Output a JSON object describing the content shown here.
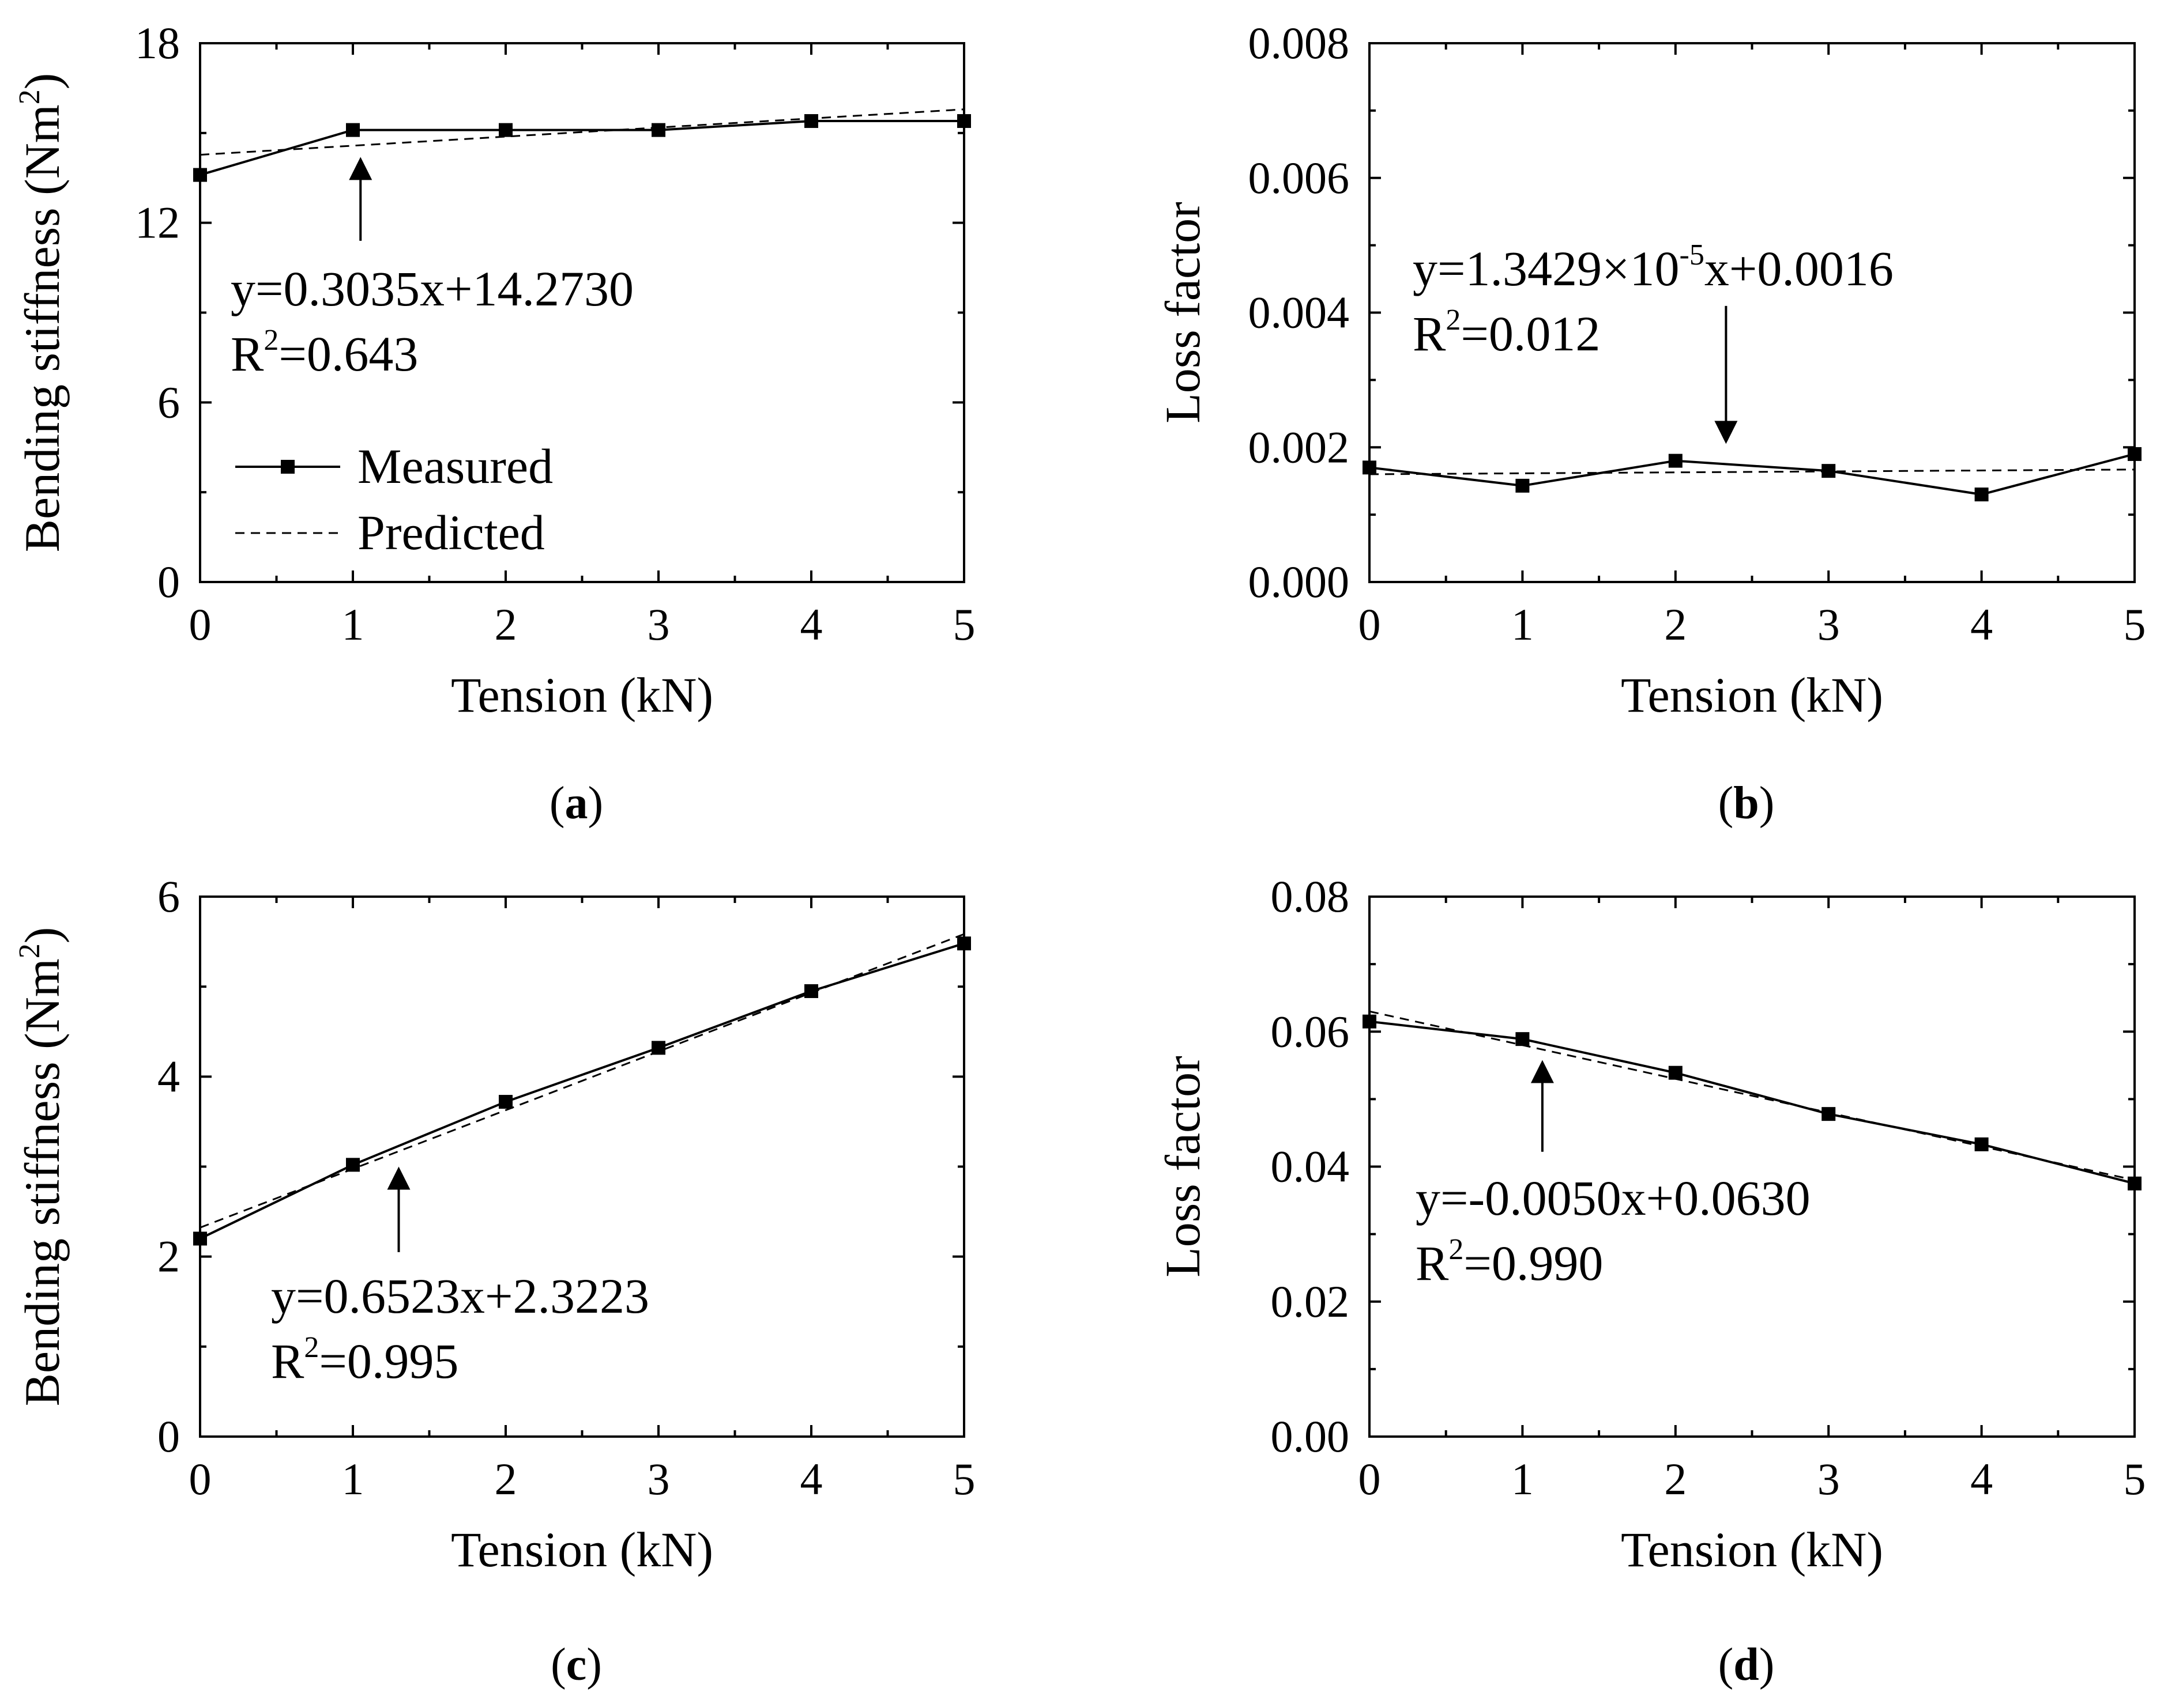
{
  "chart_data": [
    {
      "type": "line",
      "panel_label": "a",
      "xlabel": "Tension (kN)",
      "ylabel": "Bending stiffness (Nm",
      "ylabel_sup": "2",
      "ylabel_close": ")",
      "xlim": [
        0,
        5
      ],
      "ylim": [
        0,
        18
      ],
      "xticks": [
        0,
        1,
        2,
        3,
        4,
        5
      ],
      "yticks": [
        0,
        6,
        12,
        18
      ],
      "ytick_labels": [
        "0",
        "6",
        "12",
        "18"
      ],
      "series": [
        {
          "name": "Measured",
          "style": "solid-square",
          "x": [
            0,
            1,
            2,
            3,
            4,
            5
          ],
          "y": [
            13.6,
            15.1,
            15.1,
            15.1,
            15.4,
            15.4
          ]
        },
        {
          "name": "Predicted",
          "style": "dashed",
          "x": [
            0,
            5
          ],
          "y": [
            14.273,
            15.7905
          ]
        }
      ],
      "legend": {
        "position": "lower-left",
        "entries": [
          "Measured",
          "Predicted"
        ]
      },
      "equation": "y=0.3035x+14.2730",
      "r2_prefix": "R",
      "r2_sup": "2",
      "r2_value": "=0.643",
      "arrow": {
        "direction": "up",
        "x": 1.05,
        "y_from": 11.4,
        "y_to": 14.2
      }
    },
    {
      "type": "line",
      "panel_label": "b",
      "xlabel": "Tension (kN)",
      "ylabel": "Loss factor",
      "xlim": [
        0,
        5
      ],
      "ylim": [
        0,
        0.008
      ],
      "xticks": [
        0,
        1,
        2,
        3,
        4,
        5
      ],
      "yticks": [
        0,
        0.002,
        0.004,
        0.006,
        0.008
      ],
      "ytick_labels": [
        "0.000",
        "0.002",
        "0.004",
        "0.006",
        "0.008"
      ],
      "series": [
        {
          "name": "Measured",
          "style": "solid-square",
          "x": [
            0,
            1,
            2,
            3,
            4,
            5
          ],
          "y": [
            0.0017,
            0.00143,
            0.0018,
            0.00165,
            0.0013,
            0.0019
          ]
        },
        {
          "name": "Predicted",
          "style": "dashed",
          "x": [
            0,
            5
          ],
          "y": [
            0.0016,
            0.00167
          ]
        }
      ],
      "equation_pre": "y=1.3429×10",
      "equation_sup": "-5",
      "equation_post": "x+0.0016",
      "r2_prefix": "R",
      "r2_sup": "2",
      "r2_value": "=0.012",
      "arrow": {
        "direction": "down",
        "x": 2.33,
        "y_from": 0.0041,
        "y_to": 0.00205
      }
    },
    {
      "type": "line",
      "panel_label": "c",
      "xlabel": "Tension (kN)",
      "ylabel": "Bending stiffness (Nm",
      "ylabel_sup": "2",
      "ylabel_close": ")",
      "xlim": [
        0,
        5
      ],
      "ylim": [
        0,
        6
      ],
      "xticks": [
        0,
        1,
        2,
        3,
        4,
        5
      ],
      "yticks": [
        0,
        2,
        4,
        6
      ],
      "ytick_labels": [
        "0",
        "2",
        "4",
        "6"
      ],
      "series": [
        {
          "name": "Measured",
          "style": "solid-square",
          "x": [
            0,
            1,
            2,
            3,
            4,
            5
          ],
          "y": [
            2.2,
            3.02,
            3.72,
            4.32,
            4.95,
            5.48
          ]
        },
        {
          "name": "Predicted",
          "style": "dashed",
          "x": [
            0,
            5
          ],
          "y": [
            2.3223,
            5.5838
          ]
        }
      ],
      "equation": "y=0.6523x+2.3223",
      "r2_prefix": "R",
      "r2_sup": "2",
      "r2_value": "=0.995",
      "arrow": {
        "direction": "up",
        "x": 1.3,
        "y_from": 2.05,
        "y_to": 3.0
      }
    },
    {
      "type": "line",
      "panel_label": "d",
      "xlabel": "Tension (kN)",
      "ylabel": "Loss factor",
      "xlim": [
        0,
        5
      ],
      "ylim": [
        0,
        0.08
      ],
      "xticks": [
        0,
        1,
        2,
        3,
        4,
        5
      ],
      "yticks": [
        0,
        0.02,
        0.04,
        0.06,
        0.08
      ],
      "ytick_labels": [
        "0.00",
        "0.02",
        "0.04",
        "0.06",
        "0.08"
      ],
      "series": [
        {
          "name": "Measured",
          "style": "solid-square",
          "x": [
            0,
            1,
            2,
            3,
            4,
            5
          ],
          "y": [
            0.0615,
            0.0589,
            0.0539,
            0.0478,
            0.0433,
            0.0375
          ]
        },
        {
          "name": "Predicted",
          "style": "dashed",
          "x": [
            0,
            5
          ],
          "y": [
            0.063,
            0.038
          ]
        }
      ],
      "equation": "y=-0.0050x+0.0630",
      "r2_prefix": "R",
      "r2_sup": "2",
      "r2_value": "=0.990",
      "arrow": {
        "direction": "up",
        "x": 1.13,
        "y_from": 0.0422,
        "y_to": 0.0558
      }
    }
  ]
}
